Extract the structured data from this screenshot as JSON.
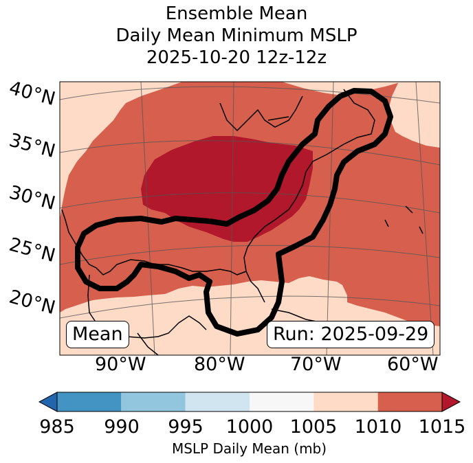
{
  "title": {
    "line1": "Ensemble Mean",
    "line2": "Daily Mean Minimum MSLP",
    "line3": "2025-10-20 12z-12z"
  },
  "map": {
    "lat_labels": [
      "40°N",
      "35°N",
      "30°N",
      "25°N",
      "20°N"
    ],
    "lon_labels": [
      "90°W",
      "80°W",
      "70°W",
      "60°W"
    ],
    "left_badge": "Mean",
    "right_badge": "Run: 2025-09-29",
    "colors": {
      "c1005_1010": "#fddbc7",
      "c1010_1015": "#d6604d",
      "c_above_1015": "#b2182b"
    },
    "regions": [
      {
        "name": "above-1015",
        "range": ">1015 mb"
      },
      {
        "name": "1010-1015",
        "range": "1010-1015 mb"
      },
      {
        "name": "1005-1010",
        "range": "1005-1010 mb"
      }
    ]
  },
  "colorbar": {
    "label": "MSLP Daily Mean (mb)",
    "ticks": [
      "985",
      "990",
      "995",
      "1000",
      "1005",
      "1010",
      "1015"
    ],
    "bins": [
      {
        "from": 985,
        "to": 990,
        "color": "#4393c3"
      },
      {
        "from": 990,
        "to": 995,
        "color": "#92c5de"
      },
      {
        "from": 995,
        "to": 1000,
        "color": "#d1e5f0"
      },
      {
        "from": 1000,
        "to": 1005,
        "color": "#f7f7f7"
      },
      {
        "from": 1005,
        "to": 1010,
        "color": "#fddbc7"
      },
      {
        "from": 1010,
        "to": 1015,
        "color": "#d6604d"
      }
    ],
    "under_color": "#2166ac",
    "over_color": "#b2182b"
  }
}
